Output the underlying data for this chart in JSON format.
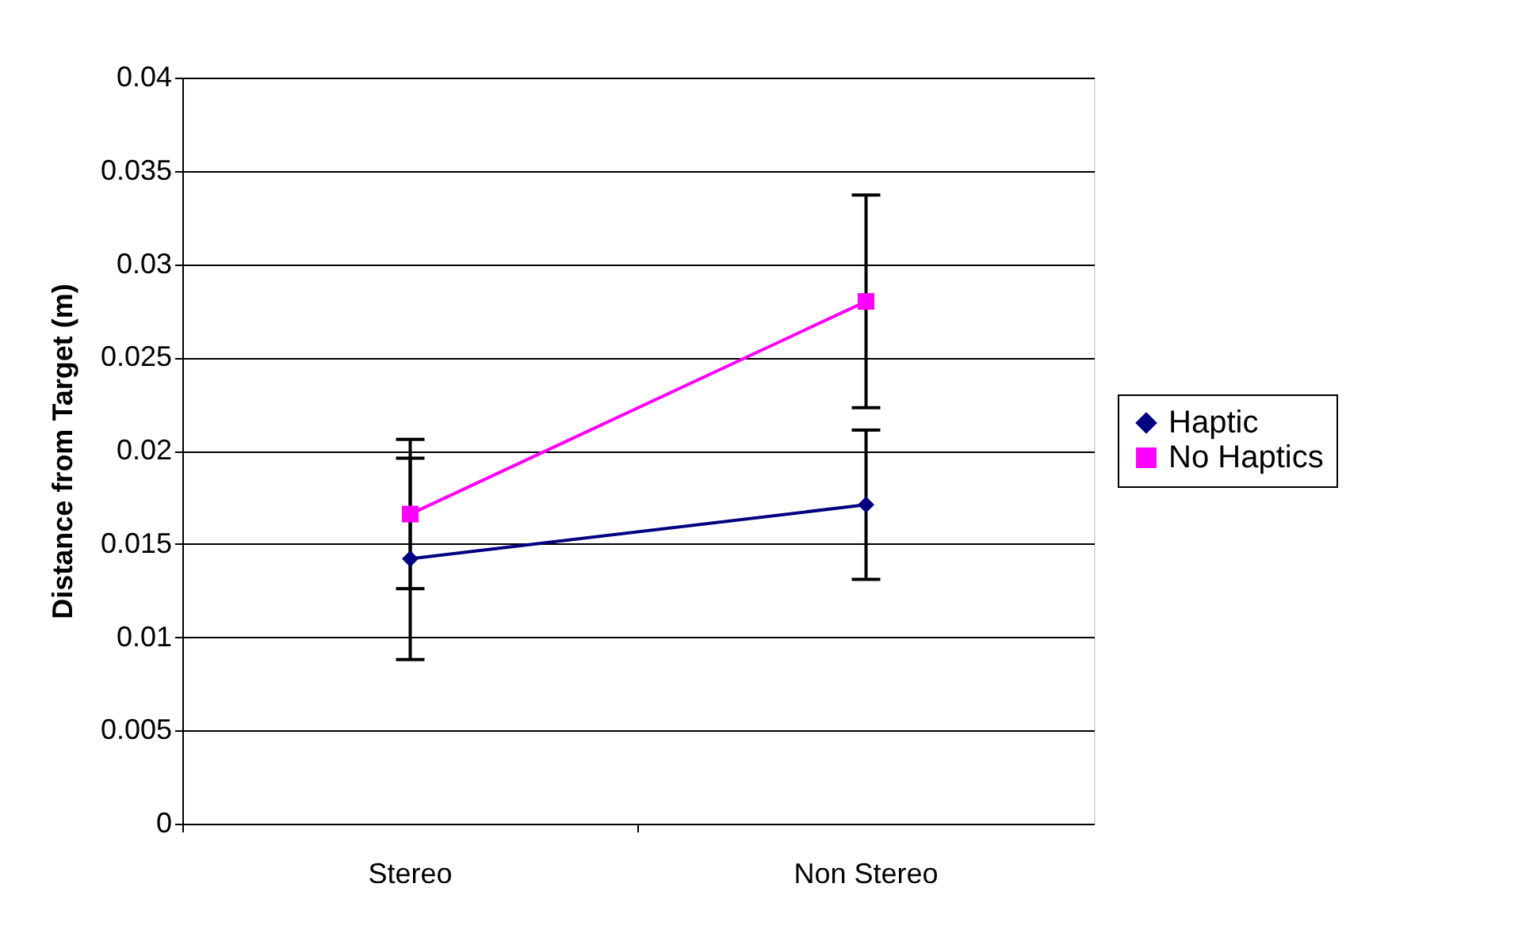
{
  "chart_data": {
    "type": "line",
    "ylabel": "Distance from Target (m)",
    "categories": [
      "Stereo",
      "Non Stereo"
    ],
    "series": [
      {
        "name": "Haptic",
        "color": "#000080",
        "marker": "diamond",
        "values": [
          0.0142,
          0.0171
        ],
        "errors": [
          0.0054,
          0.004
        ]
      },
      {
        "name": "No Haptics",
        "color": "#ff00ff",
        "marker": "square",
        "values": [
          0.0166,
          0.028
        ],
        "errors": [
          0.004,
          0.0057
        ]
      }
    ],
    "ylim": [
      0,
      0.04
    ],
    "yticks": [
      0,
      0.005,
      0.01,
      0.015,
      0.02,
      0.025,
      0.03,
      0.035,
      0.04
    ],
    "grid": "y",
    "legend": "right",
    "line_style": "solid"
  }
}
